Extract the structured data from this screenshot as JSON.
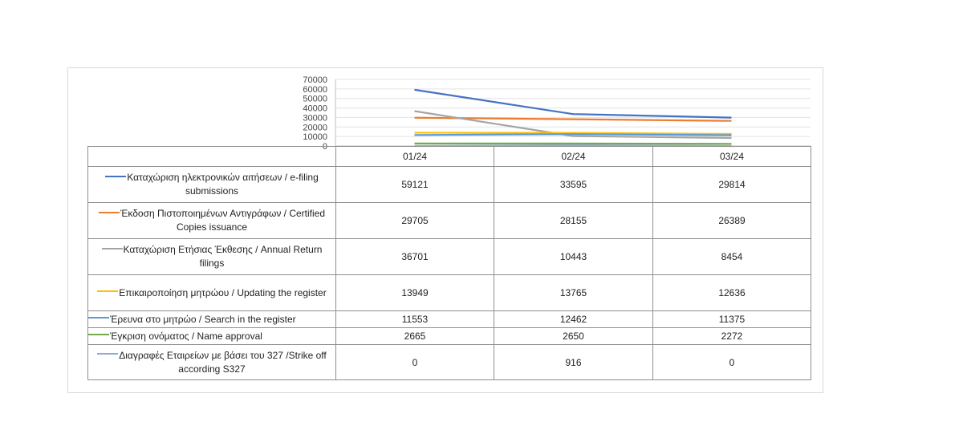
{
  "chart_data": {
    "type": "line",
    "categories": [
      "01/24",
      "02/24",
      "03/24"
    ],
    "ylim": [
      0,
      70000
    ],
    "yticks": [
      0,
      10000,
      20000,
      30000,
      40000,
      50000,
      60000,
      70000
    ],
    "grid": true,
    "legend": "data-table",
    "series": [
      {
        "name": "Καταχώριση ηλεκτρονικών αιτήσεων / e-filing submissions",
        "color": "#4472c4",
        "values": [
          59121,
          33595,
          29814
        ]
      },
      {
        "name": "Έκδοση Πιστοποιημένων Αντιγράφων / Certified Copies issuance",
        "color": "#ed7d31",
        "values": [
          29705,
          28155,
          26389
        ]
      },
      {
        "name": "Καταχώριση Ετήσιας Έκθεσης / Annual Return filings",
        "color": "#a5a5a5",
        "values": [
          36701,
          10443,
          8454
        ]
      },
      {
        "name": "Επικαιροποίηση μητρώου / Updating the register",
        "color": "#ffc000",
        "values": [
          13949,
          13765,
          12636
        ]
      },
      {
        "name": "Έρευνα στο μητρώο / Search in the register",
        "color": "#5b9bd5",
        "values": [
          11553,
          12462,
          11375
        ]
      },
      {
        "name": "Έγκριση ονόματος / Name approval",
        "color": "#70ad47",
        "values": [
          2665,
          2650,
          2272
        ]
      },
      {
        "name": "Διαγραφές Εταιρείων με βάσει του 327 /Strike off according S327",
        "color": "#8faadc",
        "values": [
          0,
          916,
          0
        ]
      }
    ]
  }
}
